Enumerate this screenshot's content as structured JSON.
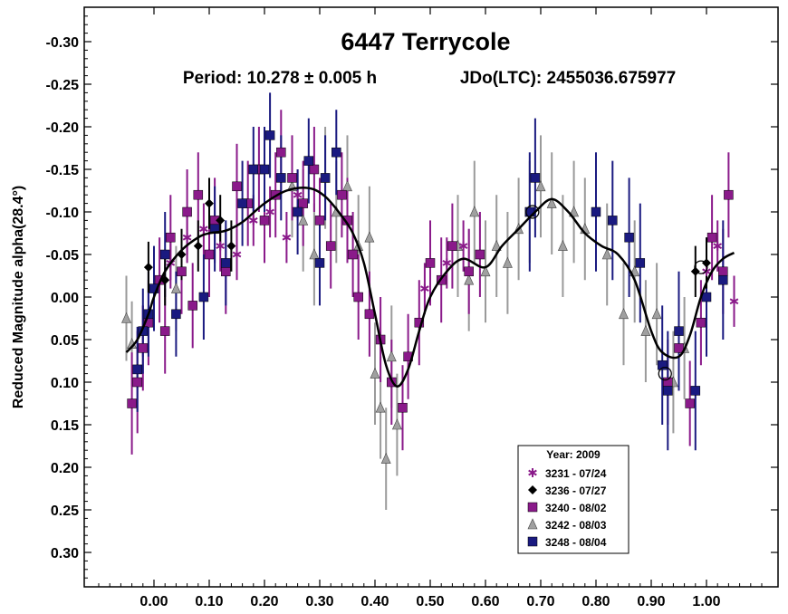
{
  "chart_data": {
    "type": "scatter",
    "title": "6447 Terrycole",
    "subtitle_period": "Period: 10.278 ± 0.005 h",
    "subtitle_epoch": "JDo(LTC): 2455036.675977",
    "xlabel": "",
    "ylabel": "Reduced Magnitude alpha(28.4°)",
    "xlim": [
      -0.1,
      1.12
    ],
    "ylim": [
      -0.33,
      0.34
    ],
    "y_inverted": true,
    "grid": false,
    "legend_position": "bottom-right",
    "legend_title": "Year: 2009",
    "x_ticks": [
      0.0,
      0.1,
      0.2,
      0.3,
      0.4,
      0.5,
      0.6,
      0.7,
      0.8,
      0.9,
      1.0
    ],
    "x_tick_labels": [
      "0.00",
      "0.10",
      "0.20",
      "0.30",
      "0.40",
      "0.50",
      "0.60",
      "0.70",
      "0.80",
      "0.90",
      "1.00"
    ],
    "y_ticks": [
      -0.3,
      -0.25,
      -0.2,
      -0.15,
      -0.1,
      -0.05,
      0.0,
      0.05,
      0.1,
      0.15,
      0.2,
      0.25,
      0.3
    ],
    "y_tick_labels": [
      "-0.30",
      "-0.25",
      "-0.20",
      "-0.15",
      "-0.10",
      "-0.05",
      "0.00",
      "0.05",
      "0.10",
      "0.15",
      "0.20",
      "0.25",
      "0.30"
    ],
    "fit_curve": {
      "x": [
        -0.05,
        -0.03,
        -0.01,
        0.0,
        0.02,
        0.05,
        0.08,
        0.1,
        0.13,
        0.16,
        0.2,
        0.24,
        0.28,
        0.31,
        0.34,
        0.36,
        0.38,
        0.4,
        0.42,
        0.44,
        0.46,
        0.48,
        0.5,
        0.53,
        0.56,
        0.6,
        0.63,
        0.66,
        0.69,
        0.72,
        0.75,
        0.78,
        0.81,
        0.84,
        0.87,
        0.9,
        0.92,
        0.95,
        0.97,
        0.99,
        1.01,
        1.03,
        1.05
      ],
      "y": [
        0.065,
        0.05,
        0.02,
        0.0,
        -0.03,
        -0.055,
        -0.07,
        -0.075,
        -0.078,
        -0.088,
        -0.11,
        -0.125,
        -0.128,
        -0.118,
        -0.095,
        -0.075,
        -0.04,
        0.02,
        0.08,
        0.105,
        0.085,
        0.04,
        0.0,
        -0.03,
        -0.045,
        -0.035,
        -0.06,
        -0.08,
        -0.1,
        -0.115,
        -0.1,
        -0.075,
        -0.06,
        -0.05,
        -0.02,
        0.04,
        0.065,
        0.07,
        0.045,
        0.0,
        -0.03,
        -0.045,
        -0.052
      ]
    },
    "series": [
      {
        "name": "3231 - 07/24",
        "marker": "asterisk",
        "color": "#8a1a8a",
        "points": [
          {
            "x": -0.02,
            "y": 0.04,
            "err": 0.03
          },
          {
            "x": 0.0,
            "y": -0.01,
            "err": 0.03
          },
          {
            "x": 0.03,
            "y": -0.04,
            "err": 0.03
          },
          {
            "x": 0.06,
            "y": -0.07,
            "err": 0.03
          },
          {
            "x": 0.09,
            "y": -0.08,
            "err": 0.03
          },
          {
            "x": 0.12,
            "y": -0.06,
            "err": 0.03
          },
          {
            "x": 0.15,
            "y": -0.05,
            "err": 0.03
          },
          {
            "x": 0.18,
            "y": -0.09,
            "err": 0.03
          },
          {
            "x": 0.21,
            "y": -0.1,
            "err": 0.03
          },
          {
            "x": 0.24,
            "y": -0.07,
            "err": 0.03
          },
          {
            "x": 0.26,
            "y": -0.12,
            "err": 0.03
          },
          {
            "x": 0.49,
            "y": -0.01,
            "err": 0.03
          },
          {
            "x": 0.53,
            "y": -0.04,
            "err": 0.03
          },
          {
            "x": 0.56,
            "y": -0.06,
            "err": 0.03
          },
          {
            "x": 1.0,
            "y": -0.03,
            "err": 0.03
          },
          {
            "x": 1.02,
            "y": -0.06,
            "err": 0.03
          },
          {
            "x": 1.05,
            "y": 0.005,
            "err": 0.03
          }
        ]
      },
      {
        "name": "3236 - 07/27",
        "marker": "diamond",
        "color": "#000000",
        "points": [
          {
            "x": -0.01,
            "y": -0.035,
            "err": 0.03
          },
          {
            "x": 0.02,
            "y": -0.02,
            "err": 0.03
          },
          {
            "x": 0.05,
            "y": -0.05,
            "err": 0.03
          },
          {
            "x": 0.08,
            "y": -0.06,
            "err": 0.03
          },
          {
            "x": 0.1,
            "y": -0.11,
            "err": 0.03
          },
          {
            "x": 0.12,
            "y": -0.09,
            "err": 0.03
          },
          {
            "x": 0.14,
            "y": -0.06,
            "err": 0.03
          },
          {
            "x": 0.98,
            "y": -0.03,
            "err": 0.03
          },
          {
            "x": 1.0,
            "y": -0.04,
            "err": 0.03
          }
        ]
      },
      {
        "name": "3240 - 08/02",
        "marker": "square",
        "color": "#8a1a8a",
        "points": [
          {
            "x": -0.04,
            "y": 0.125,
            "err": 0.06
          },
          {
            "x": -0.03,
            "y": 0.1,
            "err": 0.06
          },
          {
            "x": -0.02,
            "y": 0.06,
            "err": 0.05
          },
          {
            "x": -0.01,
            "y": 0.03,
            "err": 0.05
          },
          {
            "x": 0.01,
            "y": -0.02,
            "err": 0.05
          },
          {
            "x": 0.02,
            "y": 0.04,
            "err": 0.05
          },
          {
            "x": 0.03,
            "y": -0.07,
            "err": 0.05
          },
          {
            "x": 0.05,
            "y": -0.03,
            "err": 0.05
          },
          {
            "x": 0.06,
            "y": -0.1,
            "err": 0.05
          },
          {
            "x": 0.07,
            "y": 0.01,
            "err": 0.05
          },
          {
            "x": 0.08,
            "y": -0.12,
            "err": 0.05
          },
          {
            "x": 0.1,
            "y": -0.05,
            "err": 0.05
          },
          {
            "x": 0.11,
            "y": -0.09,
            "err": 0.05
          },
          {
            "x": 0.13,
            "y": -0.03,
            "err": 0.05
          },
          {
            "x": 0.15,
            "y": -0.13,
            "err": 0.05
          },
          {
            "x": 0.17,
            "y": -0.11,
            "err": 0.05
          },
          {
            "x": 0.19,
            "y": -0.15,
            "err": 0.05
          },
          {
            "x": 0.2,
            "y": -0.09,
            "err": 0.05
          },
          {
            "x": 0.22,
            "y": -0.12,
            "err": 0.05
          },
          {
            "x": 0.23,
            "y": -0.17,
            "err": 0.05
          },
          {
            "x": 0.25,
            "y": -0.14,
            "err": 0.05
          },
          {
            "x": 0.27,
            "y": -0.11,
            "err": 0.05
          },
          {
            "x": 0.29,
            "y": -0.15,
            "err": 0.05
          },
          {
            "x": 0.3,
            "y": -0.09,
            "err": 0.05
          },
          {
            "x": 0.32,
            "y": -0.06,
            "err": 0.05
          },
          {
            "x": 0.34,
            "y": -0.12,
            "err": 0.05
          },
          {
            "x": 0.35,
            "y": -0.09,
            "err": 0.05
          },
          {
            "x": 0.36,
            "y": -0.05,
            "err": 0.05
          },
          {
            "x": 0.37,
            "y": 0.0,
            "err": 0.05
          },
          {
            "x": 0.39,
            "y": 0.02,
            "err": 0.05
          },
          {
            "x": 0.41,
            "y": 0.05,
            "err": 0.05
          },
          {
            "x": 0.43,
            "y": 0.1,
            "err": 0.05
          },
          {
            "x": 0.45,
            "y": 0.13,
            "err": 0.05
          },
          {
            "x": 0.46,
            "y": 0.07,
            "err": 0.05
          },
          {
            "x": 0.48,
            "y": 0.03,
            "err": 0.05
          },
          {
            "x": 0.5,
            "y": -0.04,
            "err": 0.05
          },
          {
            "x": 0.52,
            "y": -0.02,
            "err": 0.05
          },
          {
            "x": 0.54,
            "y": -0.06,
            "err": 0.05
          },
          {
            "x": 0.57,
            "y": -0.03,
            "err": 0.05
          },
          {
            "x": 0.59,
            "y": -0.05,
            "err": 0.05
          },
          {
            "x": 0.93,
            "y": 0.1,
            "err": 0.05
          },
          {
            "x": 0.95,
            "y": 0.06,
            "err": 0.05
          },
          {
            "x": 0.97,
            "y": 0.125,
            "err": 0.05
          },
          {
            "x": 0.99,
            "y": 0.03,
            "err": 0.05
          },
          {
            "x": 1.01,
            "y": -0.07,
            "err": 0.05
          },
          {
            "x": 1.03,
            "y": -0.03,
            "err": 0.05
          },
          {
            "x": 1.04,
            "y": -0.12,
            "err": 0.05
          }
        ]
      },
      {
        "name": "3242 - 08/03",
        "marker": "triangle",
        "color": "#a0a0a0",
        "points": [
          {
            "x": -0.05,
            "y": 0.025,
            "err": 0.05
          },
          {
            "x": -0.04,
            "y": 0.055,
            "err": 0.05
          },
          {
            "x": 0.04,
            "y": -0.01,
            "err": 0.05
          },
          {
            "x": 0.25,
            "y": -0.13,
            "err": 0.06
          },
          {
            "x": 0.27,
            "y": -0.09,
            "err": 0.06
          },
          {
            "x": 0.29,
            "y": -0.05,
            "err": 0.06
          },
          {
            "x": 0.31,
            "y": -0.14,
            "err": 0.06
          },
          {
            "x": 0.33,
            "y": -0.1,
            "err": 0.06
          },
          {
            "x": 0.35,
            "y": -0.13,
            "err": 0.06
          },
          {
            "x": 0.37,
            "y": -0.06,
            "err": 0.06
          },
          {
            "x": 0.39,
            "y": -0.07,
            "err": 0.06
          },
          {
            "x": 0.4,
            "y": 0.09,
            "err": 0.06
          },
          {
            "x": 0.41,
            "y": 0.13,
            "err": 0.06
          },
          {
            "x": 0.42,
            "y": 0.19,
            "err": 0.06
          },
          {
            "x": 0.43,
            "y": 0.07,
            "err": 0.06
          },
          {
            "x": 0.44,
            "y": 0.15,
            "err": 0.06
          },
          {
            "x": 0.55,
            "y": -0.06,
            "err": 0.06
          },
          {
            "x": 0.57,
            "y": -0.02,
            "err": 0.06
          },
          {
            "x": 0.58,
            "y": -0.1,
            "err": 0.06
          },
          {
            "x": 0.6,
            "y": -0.03,
            "err": 0.06
          },
          {
            "x": 0.62,
            "y": -0.06,
            "err": 0.06
          },
          {
            "x": 0.64,
            "y": -0.04,
            "err": 0.06
          },
          {
            "x": 0.66,
            "y": -0.08,
            "err": 0.06
          },
          {
            "x": 0.68,
            "y": -0.1,
            "err": 0.06
          },
          {
            "x": 0.7,
            "y": -0.13,
            "err": 0.06
          },
          {
            "x": 0.72,
            "y": -0.11,
            "err": 0.06
          },
          {
            "x": 0.74,
            "y": -0.06,
            "err": 0.06
          },
          {
            "x": 0.76,
            "y": -0.1,
            "err": 0.06
          },
          {
            "x": 0.78,
            "y": -0.08,
            "err": 0.06
          },
          {
            "x": 0.82,
            "y": -0.05,
            "err": 0.06
          },
          {
            "x": 0.85,
            "y": 0.02,
            "err": 0.06
          },
          {
            "x": 0.87,
            "y": -0.03,
            "err": 0.06
          },
          {
            "x": 0.89,
            "y": 0.04,
            "err": 0.06
          },
          {
            "x": 0.91,
            "y": 0.02,
            "err": 0.06
          },
          {
            "x": 0.94,
            "y": 0.1,
            "err": 0.06
          },
          {
            "x": 0.96,
            "y": 0.06,
            "err": 0.06
          }
        ]
      },
      {
        "name": "3248 - 08/04",
        "marker": "square",
        "color": "#1a1a80",
        "points": [
          {
            "x": -0.03,
            "y": 0.085,
            "err": 0.05
          },
          {
            "x": -0.02,
            "y": 0.04,
            "err": 0.05
          },
          {
            "x": -0.01,
            "y": 0.02,
            "err": 0.05
          },
          {
            "x": 0.0,
            "y": -0.01,
            "err": 0.05
          },
          {
            "x": 0.02,
            "y": -0.05,
            "err": 0.05
          },
          {
            "x": 0.04,
            "y": 0.02,
            "err": 0.05
          },
          {
            "x": 0.09,
            "y": 0.0,
            "err": 0.05
          },
          {
            "x": 0.11,
            "y": -0.08,
            "err": 0.05
          },
          {
            "x": 0.13,
            "y": -0.04,
            "err": 0.05
          },
          {
            "x": 0.16,
            "y": -0.11,
            "err": 0.05
          },
          {
            "x": 0.18,
            "y": -0.15,
            "err": 0.05
          },
          {
            "x": 0.2,
            "y": -0.15,
            "err": 0.05
          },
          {
            "x": 0.21,
            "y": -0.19,
            "err": 0.05
          },
          {
            "x": 0.23,
            "y": -0.14,
            "err": 0.05
          },
          {
            "x": 0.26,
            "y": -0.1,
            "err": 0.05
          },
          {
            "x": 0.28,
            "y": -0.16,
            "err": 0.05
          },
          {
            "x": 0.3,
            "y": -0.04,
            "err": 0.05
          },
          {
            "x": 0.31,
            "y": -0.14,
            "err": 0.05
          },
          {
            "x": 0.33,
            "y": -0.17,
            "err": 0.05
          },
          {
            "x": 0.68,
            "y": -0.1,
            "err": 0.07
          },
          {
            "x": 0.69,
            "y": -0.14,
            "err": 0.07
          },
          {
            "x": 0.8,
            "y": -0.1,
            "err": 0.07
          },
          {
            "x": 0.83,
            "y": -0.09,
            "err": 0.07
          },
          {
            "x": 0.86,
            "y": -0.07,
            "err": 0.07
          },
          {
            "x": 0.88,
            "y": -0.04,
            "err": 0.07
          },
          {
            "x": 0.92,
            "y": 0.08,
            "err": 0.07
          },
          {
            "x": 0.93,
            "y": 0.11,
            "err": 0.07
          },
          {
            "x": 0.95,
            "y": 0.04,
            "err": 0.07
          },
          {
            "x": 0.98,
            "y": 0.11,
            "err": 0.07
          },
          {
            "x": 1.0,
            "y": 0.0,
            "err": 0.07
          },
          {
            "x": 1.03,
            "y": -0.02,
            "err": 0.07
          }
        ]
      }
    ],
    "highlight_circles": [
      {
        "x": 0.685,
        "y": -0.1
      },
      {
        "x": 0.99,
        "y": -0.035
      },
      {
        "x": 0.925,
        "y": 0.09
      }
    ]
  }
}
